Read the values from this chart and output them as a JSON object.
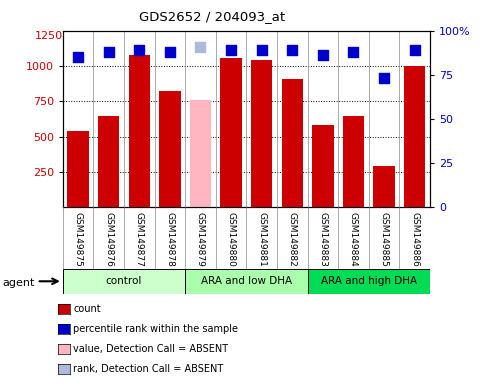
{
  "title": "GDS2652 / 204093_at",
  "samples": [
    "GSM149875",
    "GSM149876",
    "GSM149877",
    "GSM149878",
    "GSM149879",
    "GSM149880",
    "GSM149881",
    "GSM149882",
    "GSM149883",
    "GSM149884",
    "GSM149885",
    "GSM149886"
  ],
  "counts": [
    540,
    650,
    1080,
    820,
    760,
    1060,
    1040,
    910,
    580,
    650,
    290,
    1000
  ],
  "absent": [
    false,
    false,
    false,
    false,
    true,
    false,
    false,
    false,
    false,
    false,
    false,
    false
  ],
  "percentile_ranks": [
    85,
    88,
    89,
    88,
    91,
    89,
    89,
    89,
    86,
    88,
    73,
    89
  ],
  "absent_rank": [
    false,
    false,
    false,
    false,
    true,
    false,
    false,
    false,
    false,
    false,
    false,
    false
  ],
  "ylim_left": [
    0,
    1250
  ],
  "yticks_left": [
    250,
    500,
    750,
    1000
  ],
  "ytick_labels_left": [
    "250",
    "500",
    "750",
    "1000"
  ],
  "ytop_label": "1250",
  "yticks_right": [
    0,
    25,
    50,
    75,
    100
  ],
  "ytick_labels_right": [
    "0",
    "25",
    "50",
    "75",
    "100%"
  ],
  "bar_color_normal": "#CC0000",
  "bar_color_absent": "#FFB6C1",
  "dot_color_normal": "#0000CC",
  "dot_color_absent": "#AABBDD",
  "group_labels": [
    "control",
    "ARA and low DHA",
    "ARA and high DHA"
  ],
  "group_ranges": [
    [
      0,
      3
    ],
    [
      4,
      7
    ],
    [
      8,
      11
    ]
  ],
  "group_facecolors": [
    "#CCFFCC",
    "#AAFFAA",
    "#00DD55"
  ],
  "agent_label": "agent",
  "legend_items": [
    {
      "color": "#CC0000",
      "label": "count"
    },
    {
      "color": "#0000CC",
      "label": "percentile rank within the sample"
    },
    {
      "color": "#FFB6C1",
      "label": "value, Detection Call = ABSENT"
    },
    {
      "color": "#AABBDD",
      "label": "rank, Detection Call = ABSENT"
    }
  ],
  "bar_width": 0.7,
  "dot_size": 45,
  "tick_label_fontsize": 6.5
}
